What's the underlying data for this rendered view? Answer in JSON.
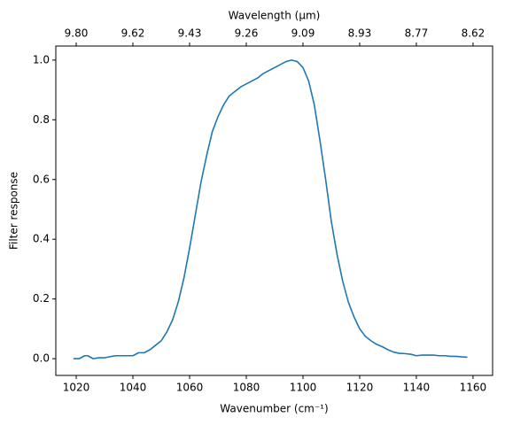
{
  "chart_data": {
    "type": "line",
    "x_label": "Wavenumber (cm⁻¹)",
    "y_label": "Filter response",
    "x2_label": "Wavelength (μm)",
    "x": [
      1019,
      1021,
      1023,
      1024,
      1026,
      1028,
      1030,
      1032,
      1034,
      1036,
      1038,
      1040,
      1042,
      1044,
      1046,
      1048,
      1050,
      1052,
      1054,
      1056,
      1058,
      1060,
      1062,
      1064,
      1066,
      1068,
      1070,
      1072,
      1074,
      1076,
      1078,
      1080,
      1082,
      1084,
      1086,
      1088,
      1090,
      1092,
      1094,
      1096,
      1098,
      1100,
      1102,
      1104,
      1106,
      1108,
      1110,
      1112,
      1114,
      1116,
      1118,
      1120,
      1122,
      1124,
      1126,
      1128,
      1130,
      1132,
      1134,
      1136,
      1138,
      1140,
      1142,
      1144,
      1146,
      1148,
      1150,
      1152,
      1154,
      1156,
      1158
    ],
    "series": [
      {
        "name": "Filter response",
        "color": "#1f77b4",
        "values": [
          0.0,
          0.0,
          0.01,
          0.01,
          0.0,
          0.003,
          0.003,
          0.007,
          0.01,
          0.01,
          0.01,
          0.01,
          0.02,
          0.02,
          0.03,
          0.045,
          0.06,
          0.09,
          0.13,
          0.19,
          0.27,
          0.37,
          0.48,
          0.59,
          0.68,
          0.76,
          0.81,
          0.85,
          0.88,
          0.895,
          0.91,
          0.92,
          0.93,
          0.94,
          0.955,
          0.965,
          0.975,
          0.985,
          0.995,
          1.0,
          0.995,
          0.975,
          0.93,
          0.85,
          0.73,
          0.6,
          0.46,
          0.35,
          0.26,
          0.19,
          0.14,
          0.1,
          0.075,
          0.06,
          0.048,
          0.04,
          0.03,
          0.022,
          0.018,
          0.017,
          0.015,
          0.01,
          0.012,
          0.012,
          0.012,
          0.01,
          0.01,
          0.008,
          0.008,
          0.006,
          0.005
        ]
      }
    ],
    "xlim": [
      1012.8,
      1166.9
    ],
    "ylim": [
      -0.056,
      1.047
    ],
    "xticks": [
      1020,
      1040,
      1060,
      1080,
      1100,
      1120,
      1140,
      1160
    ],
    "yticks": [
      {
        "value": 0,
        "label": "0.0"
      },
      {
        "value": 0.2,
        "label": "0.2"
      },
      {
        "value": 0.4,
        "label": "0.4"
      },
      {
        "value": 0.6,
        "label": "0.6"
      },
      {
        "value": 0.8,
        "label": "0.8"
      },
      {
        "value": 1,
        "label": "1.0"
      }
    ],
    "x2ticks": [
      {
        "value": 1020,
        "label": "9.80"
      },
      {
        "value": 1040,
        "label": "9.62"
      },
      {
        "value": 1060,
        "label": "9.43"
      },
      {
        "value": 1080,
        "label": "9.26"
      },
      {
        "value": 1100,
        "label": "9.09"
      },
      {
        "value": 1120,
        "label": "8.93"
      },
      {
        "value": 1140,
        "label": "8.77"
      },
      {
        "value": 1160,
        "label": "8.62"
      }
    ],
    "grid": false
  }
}
